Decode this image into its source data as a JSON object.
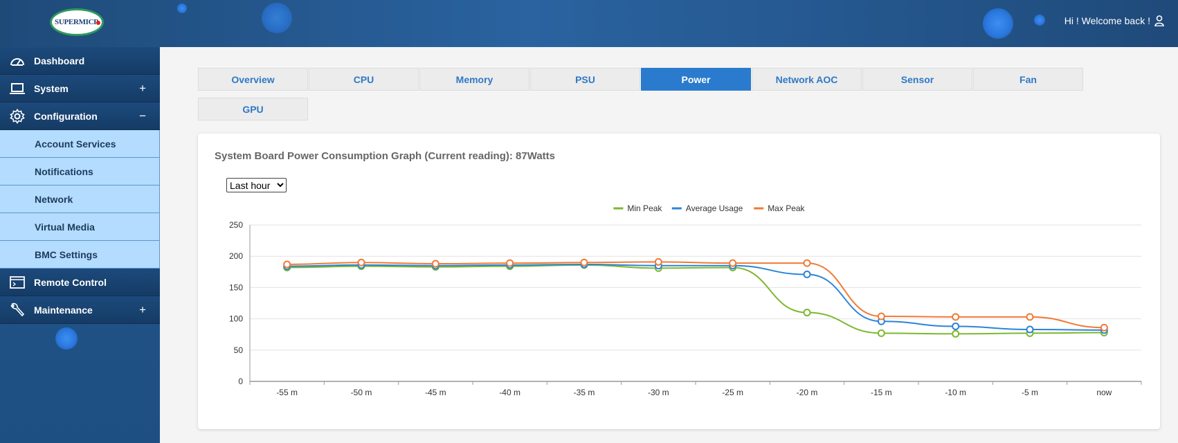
{
  "header": {
    "logo_text": "SUPERMICR",
    "welcome_text": "Hi ! Welcome back !"
  },
  "sidebar": {
    "items": [
      {
        "label": "Dashboard",
        "icon": "dashboard-icon",
        "toggle": ""
      },
      {
        "label": "System",
        "icon": "laptop-icon",
        "toggle": "+"
      },
      {
        "label": "Configuration",
        "icon": "gear-icon",
        "toggle": "−"
      }
    ],
    "sub_items": [
      "Account Services",
      "Notifications",
      "Network",
      "Virtual Media",
      "BMC Settings"
    ],
    "items_after": [
      {
        "label": "Remote Control",
        "icon": "console-icon",
        "toggle": ""
      },
      {
        "label": "Maintenance",
        "icon": "wrench-icon",
        "toggle": "+"
      }
    ]
  },
  "tabs": [
    "Overview",
    "CPU",
    "Memory",
    "PSU",
    "Power",
    "Network AOC",
    "Sensor",
    "Fan",
    "GPU"
  ],
  "active_tab": "Power",
  "card": {
    "title": "System Board Power Consumption Graph (Current reading): 87Watts",
    "range_options": [
      "Last hour"
    ],
    "range_selected": "Last hour"
  },
  "chart_data": {
    "type": "line",
    "categories": [
      "-55 m",
      "-50 m",
      "-45 m",
      "-40 m",
      "-35 m",
      "-30 m",
      "-25 m",
      "-20 m",
      "-15 m",
      "-10 m",
      "-5 m",
      "now"
    ],
    "ylim": [
      0,
      250
    ],
    "yticks": [
      0,
      50,
      100,
      150,
      200,
      250
    ],
    "grid": true,
    "legend_position": "top-center",
    "series": [
      {
        "name": "Min Peak",
        "color": "#7cb82f",
        "values": [
          182,
          184,
          183,
          184,
          186,
          181,
          182,
          110,
          77,
          76,
          77,
          78
        ]
      },
      {
        "name": "Average Usage",
        "color": "#2b84d9",
        "values": [
          184,
          186,
          185,
          186,
          187,
          185,
          185,
          171,
          96,
          88,
          83,
          82
        ]
      },
      {
        "name": "Max Peak",
        "color": "#f07a35",
        "values": [
          187,
          190,
          188,
          189,
          190,
          191,
          189,
          189,
          104,
          103,
          103,
          86
        ]
      }
    ]
  }
}
